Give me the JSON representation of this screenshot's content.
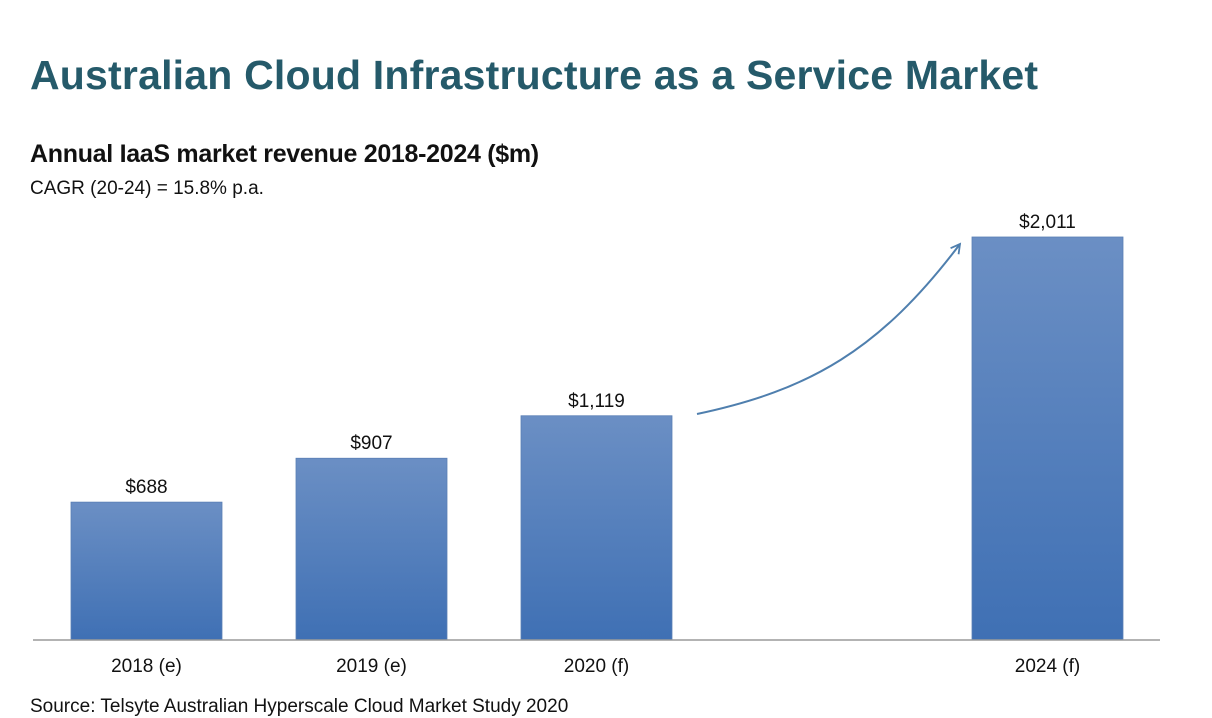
{
  "header": {
    "title": "Australian Cloud Infrastructure as a Service Market",
    "subtitle": "Annual IaaS market revenue 2018-2024 ($m)",
    "cagr_note": "CAGR (20-24) = 15.8% p.a."
  },
  "footer": {
    "source": "Source: Telsyte Australian Hyperscale Cloud Market Study 2020"
  },
  "colors": {
    "title": "#255a6a",
    "bar_top": "#6b8fc4",
    "bar_bottom": "#3f70b4",
    "arrow": "#4f7fae",
    "axis": "#9a9a9a"
  },
  "chart_data": {
    "type": "bar",
    "title": "Annual IaaS market revenue 2018-2024 ($m)",
    "subtitle": "CAGR (20-24) = 15.8% p.a.",
    "xlabel": "",
    "ylabel": "",
    "categories": [
      "2018 (e)",
      "2019 (e)",
      "2020 (f)",
      "2024 (f)"
    ],
    "values": [
      688,
      907,
      1119,
      2011
    ],
    "data_labels": [
      "$688",
      "$907",
      "$1,119",
      "$2,011"
    ],
    "units": "$m",
    "ylim": [
      0,
      2011
    ],
    "grid": false,
    "legend": "none",
    "annotations": [
      "curved growth arrow from 2020 (f) to 2024 (f)"
    ]
  }
}
